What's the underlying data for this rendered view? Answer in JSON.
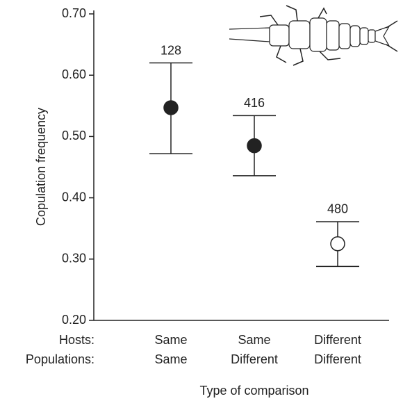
{
  "chart_data": {
    "type": "errorbar",
    "ylabel": "Copulation frequency",
    "xlabel": "Type of comparison",
    "row_labels": [
      "Hosts:",
      "Populations:"
    ],
    "category_rows": [
      [
        "Same",
        "Same",
        "Different"
      ],
      [
        "Same",
        "Different",
        "Different"
      ]
    ],
    "values": [
      0.547,
      0.485,
      0.325
    ],
    "lower": [
      0.472,
      0.436,
      0.288
    ],
    "upper": [
      0.62,
      0.534,
      0.361
    ],
    "n": [
      128,
      416,
      480
    ],
    "marker_fills": [
      "#222222",
      "#222222",
      "#ffffff"
    ],
    "ylim": [
      0.2,
      0.7
    ],
    "yticks": [
      {
        "value": 0.2,
        "label": "0.20"
      },
      {
        "value": 0.3,
        "label": "0.30"
      },
      {
        "value": 0.4,
        "label": "0.40"
      },
      {
        "value": 0.5,
        "label": "0.50"
      },
      {
        "value": 0.6,
        "label": "0.60"
      },
      {
        "value": 0.7,
        "label": "0.70"
      }
    ]
  }
}
